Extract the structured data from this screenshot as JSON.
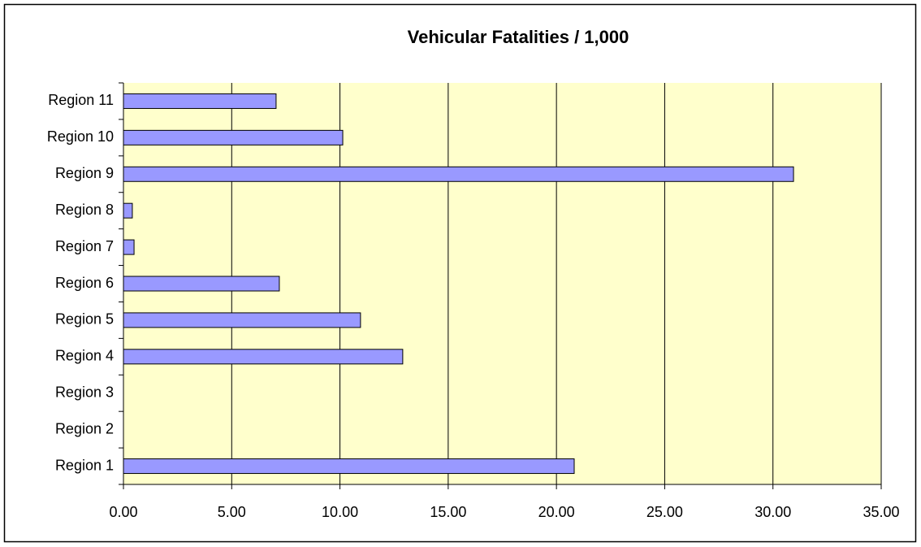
{
  "chart_data": {
    "type": "barh",
    "title": "Vehicular Fatalities / 1,000",
    "categories": [
      "Region 1",
      "Region 2",
      "Region 3",
      "Region 4",
      "Region 5",
      "Region 6",
      "Region 7",
      "Region 8",
      "Region 9",
      "Region 10",
      "Region 11"
    ],
    "values": [
      20.82,
      null,
      null,
      12.9,
      10.95,
      7.2,
      0.49,
      0.41,
      30.95,
      10.13,
      7.05
    ],
    "color": "#9999ff",
    "xlim": [
      0,
      35
    ],
    "xticks": [
      {
        "value": 0,
        "label": "0.00"
      },
      {
        "value": 5,
        "label": "5.00"
      },
      {
        "value": 10,
        "label": "10.00"
      },
      {
        "value": 15,
        "label": "15.00"
      },
      {
        "value": 20,
        "label": "20.00"
      },
      {
        "value": 25,
        "label": "25.00"
      },
      {
        "value": 30,
        "label": "30.00"
      },
      {
        "value": 35,
        "label": "35.00"
      }
    ],
    "grid": true
  }
}
